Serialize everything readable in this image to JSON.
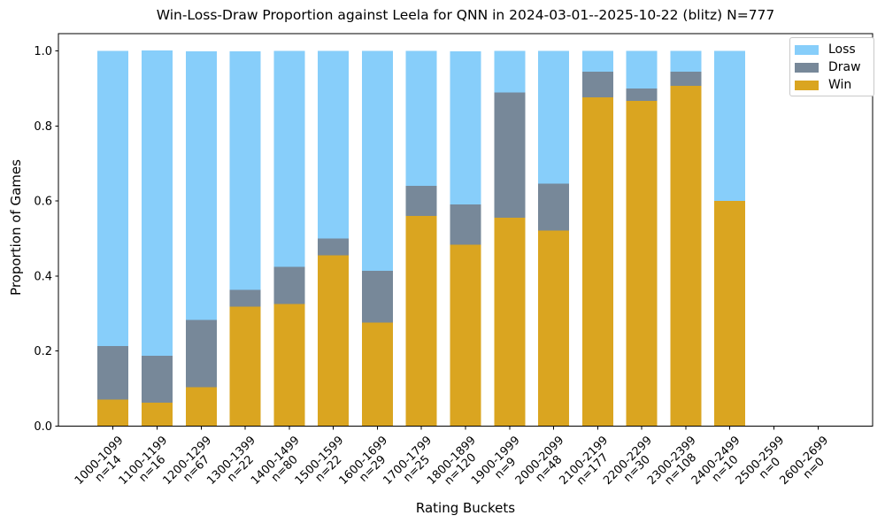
{
  "figure": {
    "title": "Win-Loss-Draw Proportion against Leela for QNN in 2024-03-01--2025-10-22 (blitz) N=777",
    "xlabel": "Rating Buckets",
    "ylabel": "Proportion of Games"
  },
  "legend": {
    "position": "upper right",
    "items": [
      {
        "label": "Loss",
        "color": "#87CEFA"
      },
      {
        "label": "Draw",
        "color": "#778899"
      },
      {
        "label": "Win",
        "color": "#DAA520"
      }
    ]
  },
  "chart_data": {
    "type": "bar",
    "stacked": true,
    "title": "Win-Loss-Draw Proportion against Leela for QNN in 2024-03-01--2025-10-22 (blitz) N=777",
    "xlabel": "Rating Buckets",
    "ylabel": "Proportion of Games",
    "total_games": 777,
    "ylim": [
      0,
      1.045
    ],
    "yticks": [
      0.0,
      0.2,
      0.4,
      0.6,
      0.8,
      1.0
    ],
    "grid": false,
    "legend_position": "upper right",
    "categories": [
      "1000-1099",
      "1100-1199",
      "1200-1299",
      "1300-1399",
      "1400-1499",
      "1500-1599",
      "1600-1699",
      "1700-1799",
      "1800-1899",
      "1900-1999",
      "2000-2099",
      "2100-2199",
      "2200-2299",
      "2300-2399",
      "2400-2499",
      "2500-2599",
      "2600-2699"
    ],
    "sample_sizes": [
      14,
      16,
      67,
      22,
      80,
      22,
      29,
      25,
      120,
      9,
      48,
      177,
      30,
      108,
      10,
      0,
      0
    ],
    "sample_size_prefix": "n=",
    "series": [
      {
        "name": "Win",
        "color": "#DAA520",
        "values": [
          0.071,
          0.063,
          0.104,
          0.318,
          0.325,
          0.455,
          0.276,
          0.56,
          0.483,
          0.556,
          0.521,
          0.876,
          0.867,
          0.907,
          0.6,
          0,
          0
        ]
      },
      {
        "name": "Draw",
        "color": "#778899",
        "values": [
          0.143,
          0.125,
          0.179,
          0.045,
          0.1,
          0.045,
          0.138,
          0.08,
          0.108,
          0.333,
          0.125,
          0.068,
          0.033,
          0.037,
          0.0,
          0,
          0
        ]
      },
      {
        "name": "Loss",
        "color": "#87CEFA",
        "values": [
          0.786,
          0.813,
          0.716,
          0.636,
          0.575,
          0.5,
          0.586,
          0.36,
          0.408,
          0.111,
          0.354,
          0.056,
          0.1,
          0.056,
          0.4,
          0,
          0
        ]
      }
    ]
  }
}
